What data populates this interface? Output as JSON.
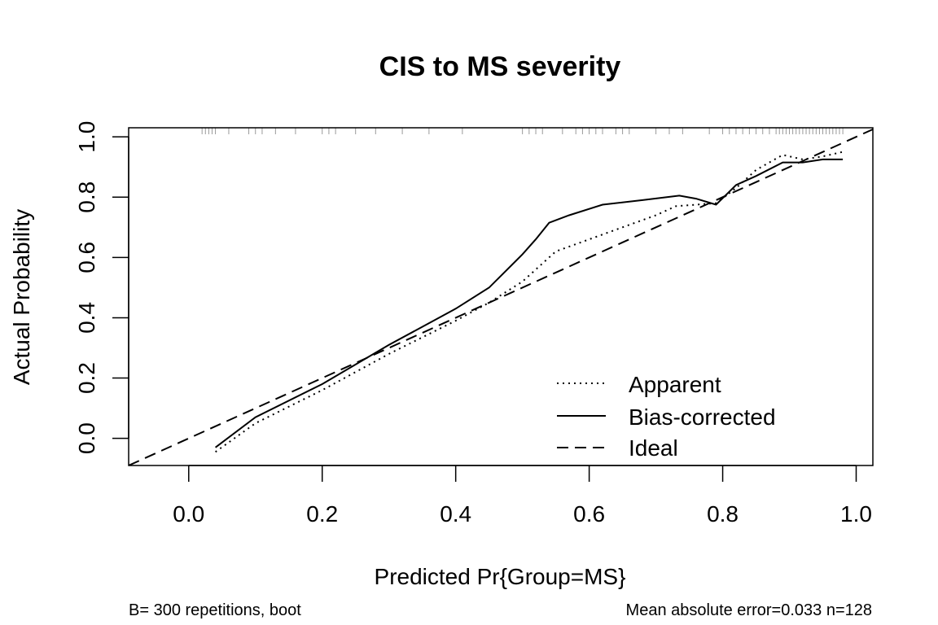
{
  "chart_data": {
    "type": "line",
    "title": "CIS to MS severity",
    "xlabel": "Predicted Pr{Group=MS}",
    "ylabel": "Actual Probability",
    "xlim": [
      -0.09,
      1.025
    ],
    "ylim": [
      -0.09,
      1.03
    ],
    "x_ticks": [
      "0.0",
      "0.2",
      "0.4",
      "0.6",
      "0.8",
      "1.0"
    ],
    "y_ticks": [
      "0.0",
      "0.2",
      "0.4",
      "0.6",
      "0.8",
      "1.0"
    ],
    "grid": false,
    "legend": "bottom-right",
    "series": [
      {
        "name": "Apparent",
        "style": "dotted",
        "x": [
          0.04,
          0.1,
          0.2,
          0.3,
          0.4,
          0.45,
          0.5,
          0.52,
          0.55,
          0.6,
          0.65,
          0.7,
          0.73,
          0.76,
          0.79,
          0.82,
          0.85,
          0.89,
          0.92,
          0.95,
          0.98
        ],
        "y": [
          -0.045,
          0.05,
          0.16,
          0.28,
          0.39,
          0.45,
          0.52,
          0.56,
          0.62,
          0.66,
          0.7,
          0.74,
          0.77,
          0.775,
          0.78,
          0.83,
          0.89,
          0.94,
          0.925,
          0.935,
          0.95
        ]
      },
      {
        "name": "Bias-corrected",
        "style": "solid",
        "x": [
          0.04,
          0.1,
          0.2,
          0.3,
          0.4,
          0.45,
          0.5,
          0.52,
          0.54,
          0.57,
          0.62,
          0.68,
          0.735,
          0.76,
          0.79,
          0.82,
          0.85,
          0.89,
          0.92,
          0.95,
          0.98
        ],
        "y": [
          -0.03,
          0.07,
          0.18,
          0.31,
          0.43,
          0.5,
          0.61,
          0.66,
          0.715,
          0.74,
          0.775,
          0.79,
          0.805,
          0.795,
          0.775,
          0.84,
          0.87,
          0.915,
          0.915,
          0.925,
          0.925
        ]
      },
      {
        "name": "Ideal",
        "style": "dashed",
        "x": [
          -0.09,
          1.025
        ],
        "y": [
          -0.09,
          1.025
        ]
      }
    ],
    "rug_x": [
      0.02,
      0.025,
      0.03,
      0.035,
      0.04,
      0.06,
      0.09,
      0.1,
      0.11,
      0.13,
      0.16,
      0.2,
      0.21,
      0.22,
      0.25,
      0.28,
      0.32,
      0.36,
      0.41,
      0.5,
      0.51,
      0.52,
      0.53,
      0.56,
      0.58,
      0.59,
      0.6,
      0.61,
      0.62,
      0.64,
      0.65,
      0.66,
      0.7,
      0.72,
      0.74,
      0.78,
      0.8,
      0.81,
      0.82,
      0.83,
      0.84,
      0.85,
      0.86,
      0.87,
      0.88,
      0.885,
      0.89,
      0.895,
      0.9,
      0.905,
      0.91,
      0.915,
      0.92,
      0.925,
      0.93,
      0.935,
      0.94,
      0.945,
      0.95,
      0.955,
      0.96,
      0.965,
      0.97,
      0.975,
      0.98
    ],
    "footnote_left": "B= 300 repetitions, boot",
    "footnote_right": "Mean absolute error=0.033 n=128"
  }
}
